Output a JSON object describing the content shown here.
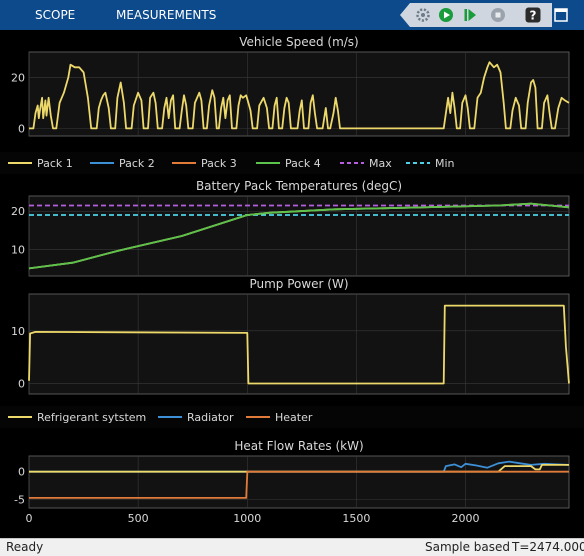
{
  "toolbar": {
    "tabs": [
      "SCOPE",
      "MEASUREMENTS"
    ],
    "buttons": [
      {
        "icon": "settings-gear-icon",
        "color": "#6e7c8a"
      },
      {
        "icon": "run-icon",
        "color": "#1a9b3c"
      },
      {
        "icon": "step-forward-icon",
        "color": "#1a9b3c"
      },
      {
        "icon": "stop-icon",
        "color": "#9aa3ad"
      },
      {
        "icon": "help-icon",
        "color": "#2b2b2b"
      },
      {
        "icon": "undock-icon",
        "color": "#2b2b2b"
      }
    ]
  },
  "colors": {
    "background": "#000000",
    "axes_bg": "#121212",
    "grid": "#3a3a3a",
    "text": "#d8d8d8",
    "toolbar": "#0d4a8c"
  },
  "legends": [
    {
      "items": [
        {
          "label": "Pack 1",
          "color": "#edd86a",
          "dash": false
        },
        {
          "label": "Pack 2",
          "color": "#3d8fd6",
          "dash": false
        },
        {
          "label": "Pack 3",
          "color": "#e07b39",
          "dash": false
        },
        {
          "label": "Pack 4",
          "color": "#5bc24c",
          "dash": false
        },
        {
          "label": "Max",
          "color": "#b75ee0",
          "dash": true
        },
        {
          "label": "Min",
          "color": "#4cd2e6",
          "dash": true
        }
      ]
    },
    {
      "items": [
        {
          "label": "Refrigerant sytstem",
          "color": "#edd86a",
          "dash": false
        },
        {
          "label": "Radiator",
          "color": "#3d8fd6",
          "dash": false
        },
        {
          "label": "Heater",
          "color": "#e07b39",
          "dash": false
        }
      ]
    }
  ],
  "chart_data": [
    {
      "type": "line",
      "title": "Vehicle Speed (m/s)",
      "xlim": [
        0,
        2474
      ],
      "ylim": [
        -3,
        30
      ],
      "yticks": [
        0,
        20
      ],
      "grid": true,
      "series": [
        {
          "name": "",
          "color": "#edd86a",
          "points": [
            [
              0,
              0
            ],
            [
              20,
              0
            ],
            [
              30,
              6
            ],
            [
              40,
              9
            ],
            [
              45,
              4
            ],
            [
              50,
              7
            ],
            [
              60,
              12
            ],
            [
              65,
              4
            ],
            [
              75,
              11
            ],
            [
              80,
              5
            ],
            [
              90,
              12
            ],
            [
              100,
              5
            ],
            [
              110,
              0
            ],
            [
              125,
              0
            ],
            [
              140,
              10
            ],
            [
              160,
              14
            ],
            [
              180,
              20
            ],
            [
              190,
              25
            ],
            [
              210,
              24
            ],
            [
              230,
              24
            ],
            [
              250,
              22
            ],
            [
              270,
              12
            ],
            [
              285,
              0
            ],
            [
              310,
              0
            ],
            [
              320,
              8
            ],
            [
              330,
              11
            ],
            [
              340,
              13
            ],
            [
              350,
              14
            ],
            [
              365,
              8
            ],
            [
              375,
              0
            ],
            [
              395,
              0
            ],
            [
              405,
              12
            ],
            [
              420,
              18
            ],
            [
              435,
              10
            ],
            [
              445,
              0
            ],
            [
              470,
              0
            ],
            [
              480,
              9
            ],
            [
              500,
              14
            ],
            [
              515,
              11
            ],
            [
              525,
              0
            ],
            [
              545,
              0
            ],
            [
              555,
              12
            ],
            [
              570,
              14
            ],
            [
              580,
              10
            ],
            [
              590,
              0
            ],
            [
              610,
              0
            ],
            [
              620,
              8
            ],
            [
              630,
              12
            ],
            [
              640,
              4
            ],
            [
              650,
              11
            ],
            [
              660,
              13
            ],
            [
              670,
              0
            ],
            [
              690,
              0
            ],
            [
              700,
              7
            ],
            [
              710,
              13
            ],
            [
              720,
              9
            ],
            [
              730,
              0
            ],
            [
              750,
              0
            ],
            [
              760,
              10
            ],
            [
              780,
              14
            ],
            [
              790,
              11
            ],
            [
              800,
              0
            ],
            [
              815,
              0
            ],
            [
              825,
              9
            ],
            [
              840,
              15
            ],
            [
              850,
              12
            ],
            [
              860,
              0
            ],
            [
              870,
              0
            ],
            [
              880,
              8
            ],
            [
              890,
              12
            ],
            [
              900,
              4
            ],
            [
              910,
              11
            ],
            [
              920,
              13
            ],
            [
              930,
              0
            ],
            [
              950,
              0
            ],
            [
              960,
              9
            ],
            [
              970,
              13
            ],
            [
              980,
              12
            ],
            [
              995,
              13
            ],
            [
              1005,
              10
            ],
            [
              1015,
              7
            ],
            [
              1025,
              0
            ],
            [
              1045,
              0
            ],
            [
              1055,
              9
            ],
            [
              1075,
              12
            ],
            [
              1090,
              8
            ],
            [
              1100,
              0
            ],
            [
              1115,
              0
            ],
            [
              1125,
              9
            ],
            [
              1135,
              12
            ],
            [
              1145,
              0
            ],
            [
              1160,
              0
            ],
            [
              1170,
              8
            ],
            [
              1180,
              12
            ],
            [
              1190,
              10
            ],
            [
              1200,
              0
            ],
            [
              1230,
              0
            ],
            [
              1240,
              7
            ],
            [
              1250,
              11
            ],
            [
              1260,
              0
            ],
            [
              1280,
              0
            ],
            [
              1290,
              10
            ],
            [
              1300,
              13
            ],
            [
              1310,
              6
            ],
            [
              1320,
              0
            ],
            [
              1345,
              0
            ],
            [
              1360,
              8
            ],
            [
              1370,
              0
            ],
            [
              1380,
              0
            ],
            [
              1395,
              6
            ],
            [
              1405,
              12
            ],
            [
              1415,
              7
            ],
            [
              1425,
              0
            ],
            [
              1440,
              0
            ],
            [
              1460,
              0
            ],
            [
              1900,
              0
            ],
            [
              1910,
              6
            ],
            [
              1920,
              12
            ],
            [
              1930,
              6
            ],
            [
              1940,
              14
            ],
            [
              1950,
              8
            ],
            [
              1960,
              0
            ],
            [
              1975,
              0
            ],
            [
              1985,
              10
            ],
            [
              2000,
              13
            ],
            [
              2010,
              8
            ],
            [
              2020,
              0
            ],
            [
              2040,
              0
            ],
            [
              2055,
              12
            ],
            [
              2070,
              14
            ],
            [
              2085,
              20
            ],
            [
              2100,
              24
            ],
            [
              2110,
              26
            ],
            [
              2130,
              24
            ],
            [
              2145,
              25
            ],
            [
              2160,
              22
            ],
            [
              2175,
              10
            ],
            [
              2185,
              0
            ],
            [
              2205,
              0
            ],
            [
              2215,
              7
            ],
            [
              2230,
              12
            ],
            [
              2245,
              9
            ],
            [
              2255,
              0
            ],
            [
              2275,
              0
            ],
            [
              2285,
              10
            ],
            [
              2300,
              18
            ],
            [
              2310,
              19
            ],
            [
              2320,
              16
            ],
            [
              2330,
              0
            ],
            [
              2350,
              0
            ],
            [
              2360,
              10
            ],
            [
              2375,
              13
            ],
            [
              2385,
              6
            ],
            [
              2395,
              0
            ],
            [
              2410,
              0
            ],
            [
              2425,
              8
            ],
            [
              2440,
              12
            ],
            [
              2455,
              11
            ],
            [
              2474,
              10
            ]
          ]
        }
      ]
    },
    {
      "type": "line",
      "title": "Battery Pack Temperatures (degC)",
      "xlim": [
        0,
        2474
      ],
      "ylim": [
        3,
        24
      ],
      "yticks": [
        10,
        20
      ],
      "grid": true,
      "series": [
        {
          "name": "Max",
          "color": "#b75ee0",
          "dash": true,
          "points": [
            [
              0,
              21.5
            ],
            [
              2474,
              21.5
            ]
          ]
        },
        {
          "name": "Min",
          "color": "#4cd2e6",
          "dash": true,
          "points": [
            [
              0,
              19
            ],
            [
              2474,
              19
            ]
          ]
        },
        {
          "name": "Pack 1",
          "color": "#edd86a",
          "points": [
            [
              0,
              5
            ],
            [
              200,
              6.5
            ],
            [
              400,
              9.5
            ],
            [
              700,
              13.5
            ],
            [
              1000,
              19
            ],
            [
              1100,
              19.6
            ],
            [
              1400,
              20.5
            ],
            [
              1800,
              21
            ],
            [
              2150,
              21.5
            ],
            [
              2300,
              22
            ],
            [
              2474,
              21
            ]
          ]
        },
        {
          "name": "Pack 4",
          "color": "#5bc24c",
          "points": [
            [
              0,
              5
            ],
            [
              200,
              6.5
            ],
            [
              400,
              9.5
            ],
            [
              700,
              13.5
            ],
            [
              1000,
              19
            ],
            [
              1100,
              19.6
            ],
            [
              1400,
              20.5
            ],
            [
              1800,
              21
            ],
            [
              2150,
              21.5
            ],
            [
              2300,
              22
            ],
            [
              2474,
              21
            ]
          ]
        }
      ]
    },
    {
      "type": "line",
      "title": "Pump Power (W)",
      "xlim": [
        0,
        2474
      ],
      "ylim": [
        -2,
        17
      ],
      "yticks": [
        0,
        10
      ],
      "grid": true,
      "series": [
        {
          "name": "Refrigerant sytstem",
          "color": "#edd86a",
          "points": [
            [
              0,
              0.5
            ],
            [
              5,
              9.5
            ],
            [
              30,
              9.8
            ],
            [
              1000,
              9.6
            ],
            [
              1005,
              0
            ],
            [
              1900,
              0
            ],
            [
              1905,
              14.8
            ],
            [
              2450,
              14.8
            ],
            [
              2460,
              7
            ],
            [
              2474,
              0
            ]
          ]
        }
      ]
    },
    {
      "type": "line",
      "title": "Heat Flow Rates (kW)",
      "xlim": [
        0,
        2474
      ],
      "ylim": [
        -6.5,
        2.8
      ],
      "xticks": [
        0,
        500,
        1000,
        1500,
        2000
      ],
      "yticks": [
        -5,
        0
      ],
      "grid": true,
      "series": [
        {
          "name": "Radiator",
          "color": "#3d8fd6",
          "points": [
            [
              0,
              0
            ],
            [
              1900,
              0
            ],
            [
              1910,
              1
            ],
            [
              1950,
              1.3
            ],
            [
              1980,
              0.8
            ],
            [
              2000,
              1.4
            ],
            [
              2050,
              1.1
            ],
            [
              2100,
              0.7
            ],
            [
              2150,
              1.5
            ],
            [
              2200,
              1.8
            ],
            [
              2250,
              1.5
            ],
            [
              2300,
              1.2
            ],
            [
              2360,
              1.4
            ],
            [
              2420,
              1.3
            ],
            [
              2474,
              1.2
            ]
          ]
        },
        {
          "name": "Refrigerant sytstem",
          "color": "#edd86a",
          "points": [
            [
              0,
              0
            ],
            [
              2150,
              0
            ],
            [
              2180,
              1
            ],
            [
              2300,
              1
            ],
            [
              2320,
              0.4
            ],
            [
              2340,
              0.4
            ],
            [
              2350,
              1.2
            ],
            [
              2474,
              1.2
            ]
          ]
        },
        {
          "name": "Heater",
          "color": "#e07b39",
          "points": [
            [
              0,
              -4.7
            ],
            [
              995,
              -4.7
            ],
            [
              1000,
              -0.2
            ],
            [
              1000,
              0
            ],
            [
              2474,
              0
            ]
          ]
        }
      ]
    }
  ],
  "status": {
    "left": "Ready",
    "mid": "Sample based",
    "right": "T=2474.0000"
  }
}
